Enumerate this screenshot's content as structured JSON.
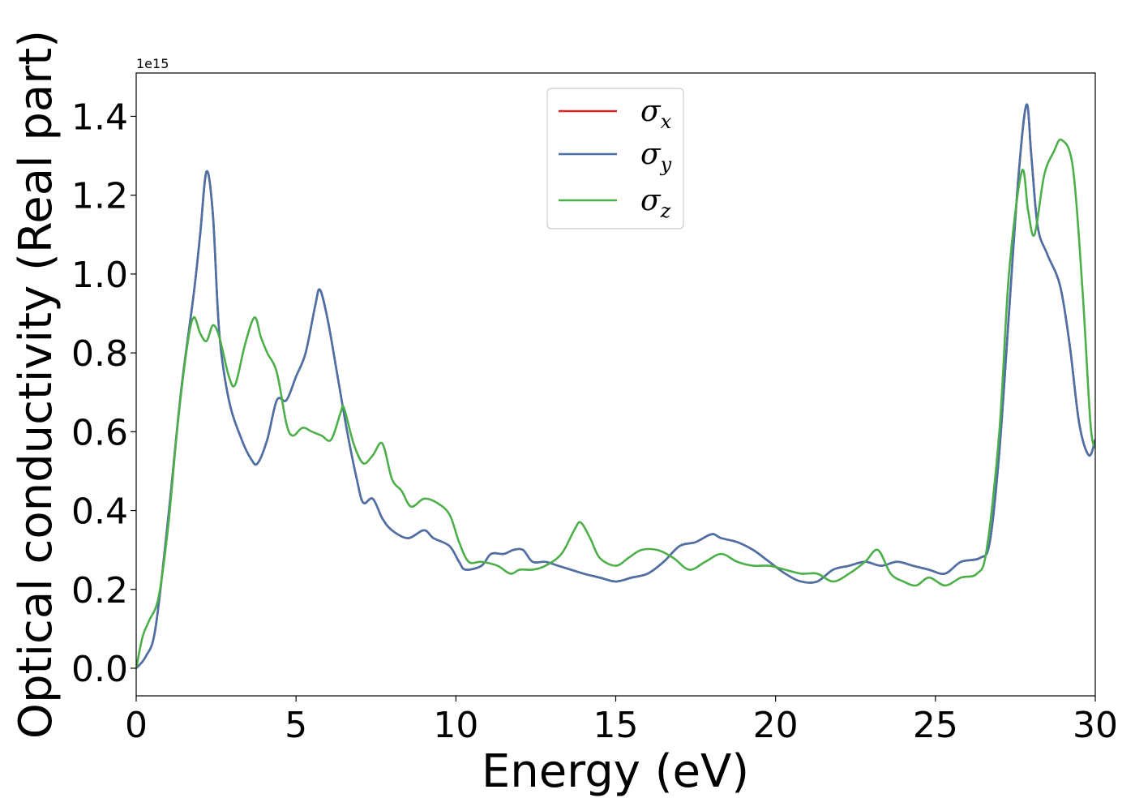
{
  "chart_data": {
    "type": "line",
    "xlabel": "Energy (eV)",
    "ylabel": "Optical conductivity (Real part)",
    "y_offset_text": "1e15",
    "y_scale": 1000000000000000.0,
    "xlim": [
      0,
      30
    ],
    "ylim": [
      -0.07,
      1.51
    ],
    "xticks": [
      0,
      5,
      10,
      15,
      20,
      25,
      30
    ],
    "xtick_labels": [
      "0",
      "5",
      "10",
      "15",
      "20",
      "25",
      "30"
    ],
    "yticks": [
      0.0,
      0.2,
      0.4,
      0.6,
      0.8,
      1.0,
      1.2,
      1.4
    ],
    "ytick_labels": [
      "0.0",
      "0.2",
      "0.4",
      "0.6",
      "0.8",
      "1.0",
      "1.2",
      "1.4"
    ],
    "grid": false,
    "legend_position": "top-center",
    "series": [
      {
        "name": "σx",
        "symbol": "σ",
        "subscript": "x",
        "color": "#d62728",
        "points": [
          [
            0,
            0
          ],
          [
            0.3,
            0.03
          ],
          [
            0.6,
            0.1
          ],
          [
            1.0,
            0.38
          ],
          [
            1.4,
            0.7
          ],
          [
            1.8,
            0.95
          ],
          [
            2.0,
            1.1
          ],
          [
            2.2,
            1.26
          ],
          [
            2.4,
            1.15
          ],
          [
            2.6,
            0.85
          ],
          [
            2.9,
            0.68
          ],
          [
            3.3,
            0.58
          ],
          [
            3.6,
            0.53
          ],
          [
            3.8,
            0.52
          ],
          [
            4.1,
            0.58
          ],
          [
            4.4,
            0.68
          ],
          [
            4.7,
            0.68
          ],
          [
            5.0,
            0.74
          ],
          [
            5.3,
            0.8
          ],
          [
            5.6,
            0.92
          ],
          [
            5.75,
            0.96
          ],
          [
            6.0,
            0.88
          ],
          [
            6.3,
            0.74
          ],
          [
            6.6,
            0.6
          ],
          [
            6.9,
            0.48
          ],
          [
            7.1,
            0.42
          ],
          [
            7.4,
            0.43
          ],
          [
            7.7,
            0.38
          ],
          [
            8.0,
            0.35
          ],
          [
            8.5,
            0.33
          ],
          [
            9.0,
            0.35
          ],
          [
            9.3,
            0.33
          ],
          [
            9.8,
            0.31
          ],
          [
            10.1,
            0.27
          ],
          [
            10.3,
            0.25
          ],
          [
            10.8,
            0.26
          ],
          [
            11.1,
            0.29
          ],
          [
            11.5,
            0.29
          ],
          [
            11.8,
            0.3
          ],
          [
            12.1,
            0.3
          ],
          [
            12.4,
            0.27
          ],
          [
            12.8,
            0.27
          ],
          [
            13.2,
            0.26
          ],
          [
            13.6,
            0.25
          ],
          [
            14.0,
            0.24
          ],
          [
            14.5,
            0.23
          ],
          [
            15.0,
            0.22
          ],
          [
            15.5,
            0.23
          ],
          [
            16.0,
            0.24
          ],
          [
            16.5,
            0.27
          ],
          [
            17.0,
            0.31
          ],
          [
            17.5,
            0.32
          ],
          [
            18.0,
            0.34
          ],
          [
            18.3,
            0.33
          ],
          [
            18.8,
            0.32
          ],
          [
            19.3,
            0.3
          ],
          [
            19.8,
            0.27
          ],
          [
            20.3,
            0.24
          ],
          [
            20.8,
            0.22
          ],
          [
            21.3,
            0.22
          ],
          [
            21.8,
            0.25
          ],
          [
            22.3,
            0.26
          ],
          [
            22.8,
            0.27
          ],
          [
            23.3,
            0.26
          ],
          [
            23.8,
            0.27
          ],
          [
            24.3,
            0.26
          ],
          [
            24.8,
            0.25
          ],
          [
            25.3,
            0.24
          ],
          [
            25.8,
            0.27
          ],
          [
            26.4,
            0.28
          ],
          [
            26.7,
            0.32
          ],
          [
            27.0,
            0.55
          ],
          [
            27.3,
            0.9
          ],
          [
            27.6,
            1.25
          ],
          [
            27.85,
            1.43
          ],
          [
            28.0,
            1.3
          ],
          [
            28.2,
            1.12
          ],
          [
            28.5,
            1.05
          ],
          [
            28.9,
            0.97
          ],
          [
            29.2,
            0.82
          ],
          [
            29.5,
            0.62
          ],
          [
            29.8,
            0.54
          ],
          [
            30.0,
            0.58
          ]
        ]
      },
      {
        "name": "σy",
        "symbol": "σ",
        "subscript": "y",
        "color": "#4a72a8",
        "points": [
          [
            0,
            0
          ],
          [
            0.3,
            0.03
          ],
          [
            0.6,
            0.1
          ],
          [
            1.0,
            0.38
          ],
          [
            1.4,
            0.7
          ],
          [
            1.8,
            0.95
          ],
          [
            2.0,
            1.1
          ],
          [
            2.2,
            1.26
          ],
          [
            2.4,
            1.15
          ],
          [
            2.6,
            0.85
          ],
          [
            2.9,
            0.68
          ],
          [
            3.3,
            0.58
          ],
          [
            3.6,
            0.53
          ],
          [
            3.8,
            0.52
          ],
          [
            4.1,
            0.58
          ],
          [
            4.4,
            0.68
          ],
          [
            4.7,
            0.68
          ],
          [
            5.0,
            0.74
          ],
          [
            5.3,
            0.8
          ],
          [
            5.6,
            0.92
          ],
          [
            5.75,
            0.96
          ],
          [
            6.0,
            0.88
          ],
          [
            6.3,
            0.74
          ],
          [
            6.6,
            0.6
          ],
          [
            6.9,
            0.48
          ],
          [
            7.1,
            0.42
          ],
          [
            7.4,
            0.43
          ],
          [
            7.7,
            0.38
          ],
          [
            8.0,
            0.35
          ],
          [
            8.5,
            0.33
          ],
          [
            9.0,
            0.35
          ],
          [
            9.3,
            0.33
          ],
          [
            9.8,
            0.31
          ],
          [
            10.1,
            0.27
          ],
          [
            10.3,
            0.25
          ],
          [
            10.8,
            0.26
          ],
          [
            11.1,
            0.29
          ],
          [
            11.5,
            0.29
          ],
          [
            11.8,
            0.3
          ],
          [
            12.1,
            0.3
          ],
          [
            12.4,
            0.27
          ],
          [
            12.8,
            0.27
          ],
          [
            13.2,
            0.26
          ],
          [
            13.6,
            0.25
          ],
          [
            14.0,
            0.24
          ],
          [
            14.5,
            0.23
          ],
          [
            15.0,
            0.22
          ],
          [
            15.5,
            0.23
          ],
          [
            16.0,
            0.24
          ],
          [
            16.5,
            0.27
          ],
          [
            17.0,
            0.31
          ],
          [
            17.5,
            0.32
          ],
          [
            18.0,
            0.34
          ],
          [
            18.3,
            0.33
          ],
          [
            18.8,
            0.32
          ],
          [
            19.3,
            0.3
          ],
          [
            19.8,
            0.27
          ],
          [
            20.3,
            0.24
          ],
          [
            20.8,
            0.22
          ],
          [
            21.3,
            0.22
          ],
          [
            21.8,
            0.25
          ],
          [
            22.3,
            0.26
          ],
          [
            22.8,
            0.27
          ],
          [
            23.3,
            0.26
          ],
          [
            23.8,
            0.27
          ],
          [
            24.3,
            0.26
          ],
          [
            24.8,
            0.25
          ],
          [
            25.3,
            0.24
          ],
          [
            25.8,
            0.27
          ],
          [
            26.4,
            0.28
          ],
          [
            26.7,
            0.32
          ],
          [
            27.0,
            0.55
          ],
          [
            27.3,
            0.9
          ],
          [
            27.6,
            1.25
          ],
          [
            27.85,
            1.43
          ],
          [
            28.0,
            1.3
          ],
          [
            28.2,
            1.12
          ],
          [
            28.5,
            1.05
          ],
          [
            28.9,
            0.97
          ],
          [
            29.2,
            0.82
          ],
          [
            29.5,
            0.62
          ],
          [
            29.8,
            0.54
          ],
          [
            30.0,
            0.58
          ]
        ]
      },
      {
        "name": "σz",
        "symbol": "σ",
        "subscript": "z",
        "color": "#4daf4a",
        "points": [
          [
            0,
            0
          ],
          [
            0.2,
            0.08
          ],
          [
            0.4,
            0.12
          ],
          [
            0.7,
            0.18
          ],
          [
            1.0,
            0.36
          ],
          [
            1.3,
            0.62
          ],
          [
            1.6,
            0.82
          ],
          [
            1.8,
            0.89
          ],
          [
            2.0,
            0.85
          ],
          [
            2.2,
            0.83
          ],
          [
            2.4,
            0.87
          ],
          [
            2.6,
            0.84
          ],
          [
            2.9,
            0.74
          ],
          [
            3.1,
            0.72
          ],
          [
            3.4,
            0.82
          ],
          [
            3.7,
            0.89
          ],
          [
            3.9,
            0.84
          ],
          [
            4.1,
            0.8
          ],
          [
            4.4,
            0.75
          ],
          [
            4.7,
            0.62
          ],
          [
            4.9,
            0.59
          ],
          [
            5.2,
            0.61
          ],
          [
            5.5,
            0.6
          ],
          [
            5.8,
            0.59
          ],
          [
            6.1,
            0.58
          ],
          [
            6.4,
            0.65
          ],
          [
            6.5,
            0.66
          ],
          [
            6.8,
            0.57
          ],
          [
            7.1,
            0.52
          ],
          [
            7.4,
            0.54
          ],
          [
            7.7,
            0.57
          ],
          [
            8.0,
            0.48
          ],
          [
            8.3,
            0.45
          ],
          [
            8.6,
            0.41
          ],
          [
            9.0,
            0.43
          ],
          [
            9.4,
            0.42
          ],
          [
            9.8,
            0.39
          ],
          [
            10.1,
            0.32
          ],
          [
            10.4,
            0.27
          ],
          [
            10.8,
            0.27
          ],
          [
            11.3,
            0.26
          ],
          [
            11.7,
            0.24
          ],
          [
            12.0,
            0.25
          ],
          [
            12.4,
            0.25
          ],
          [
            12.8,
            0.26
          ],
          [
            13.3,
            0.29
          ],
          [
            13.7,
            0.35
          ],
          [
            13.9,
            0.37
          ],
          [
            14.2,
            0.33
          ],
          [
            14.5,
            0.28
          ],
          [
            15.0,
            0.26
          ],
          [
            15.4,
            0.28
          ],
          [
            15.8,
            0.3
          ],
          [
            16.3,
            0.3
          ],
          [
            16.8,
            0.28
          ],
          [
            17.3,
            0.25
          ],
          [
            17.8,
            0.27
          ],
          [
            18.3,
            0.29
          ],
          [
            18.8,
            0.27
          ],
          [
            19.3,
            0.26
          ],
          [
            19.8,
            0.26
          ],
          [
            20.3,
            0.25
          ],
          [
            20.8,
            0.24
          ],
          [
            21.3,
            0.24
          ],
          [
            21.8,
            0.22
          ],
          [
            22.3,
            0.24
          ],
          [
            22.8,
            0.27
          ],
          [
            23.2,
            0.3
          ],
          [
            23.6,
            0.24
          ],
          [
            24.0,
            0.22
          ],
          [
            24.4,
            0.21
          ],
          [
            24.8,
            0.23
          ],
          [
            25.3,
            0.21
          ],
          [
            25.8,
            0.23
          ],
          [
            26.3,
            0.24
          ],
          [
            26.6,
            0.3
          ],
          [
            27.0,
            0.6
          ],
          [
            27.3,
            1.0
          ],
          [
            27.7,
            1.26
          ],
          [
            27.9,
            1.16
          ],
          [
            28.1,
            1.1
          ],
          [
            28.4,
            1.25
          ],
          [
            28.7,
            1.31
          ],
          [
            28.95,
            1.34
          ],
          [
            29.3,
            1.27
          ],
          [
            29.6,
            0.96
          ],
          [
            29.85,
            0.62
          ],
          [
            30.0,
            0.56
          ]
        ]
      }
    ]
  }
}
